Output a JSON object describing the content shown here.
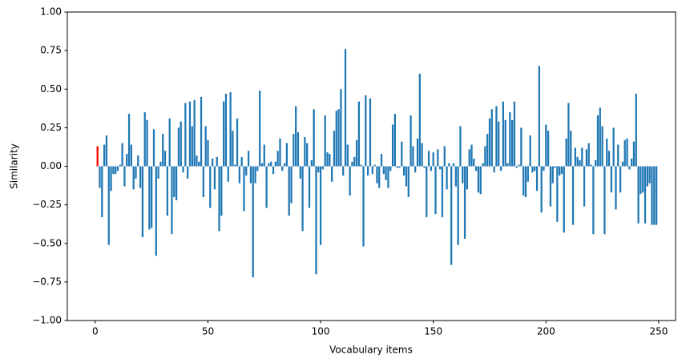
{
  "chart_data": {
    "type": "bar",
    "xlabel": "Vocabulary items",
    "ylabel": "Similarity",
    "xlim": [
      -12.4,
      257.5
    ],
    "ylim": [
      -1,
      1
    ],
    "xticks": [
      0,
      50,
      100,
      150,
      200,
      250
    ],
    "yticks": [
      {
        "value": -1,
        "label": "−1.00"
      },
      {
        "value": -0.75,
        "label": "−0.75"
      },
      {
        "value": -0.5,
        "label": "−0.50"
      },
      {
        "value": -0.25,
        "label": "−0.25"
      },
      {
        "value": 0,
        "label": "0.00"
      },
      {
        "value": 0.25,
        "label": "0.25"
      },
      {
        "value": 0.5,
        "label": "0.50"
      },
      {
        "value": 0.75,
        "label": "0.75"
      },
      {
        "value": 1,
        "label": "1.00"
      }
    ],
    "grid": false,
    "series": [
      {
        "color": "#ff0000",
        "x": [
          1
        ],
        "values": [
          0.13
        ]
      },
      {
        "color": "#1f77b4",
        "x": [
          2,
          3,
          4,
          5,
          6,
          7,
          8,
          9,
          10,
          11,
          12,
          13,
          14,
          15,
          16,
          17,
          18,
          19,
          20,
          21,
          22,
          23,
          24,
          25,
          26,
          27,
          28,
          29,
          30,
          31,
          32,
          33,
          34,
          35,
          36,
          37,
          38,
          39,
          40,
          41,
          42,
          43,
          44,
          45,
          46,
          47,
          48,
          49,
          50,
          51,
          52,
          53,
          54,
          55,
          56,
          57,
          58,
          59,
          60,
          61,
          62,
          63,
          64,
          65,
          66,
          67,
          68,
          69,
          70,
          71,
          72,
          73,
          74,
          75,
          76,
          77,
          78,
          79,
          80,
          81,
          82,
          83,
          84,
          85,
          86,
          87,
          88,
          89,
          90,
          91,
          92,
          93,
          94,
          95,
          96,
          97,
          98,
          99,
          100,
          101,
          102,
          103,
          104,
          105,
          106,
          107,
          108,
          109,
          110,
          111,
          112,
          113,
          114,
          115,
          116,
          117,
          118,
          119,
          120,
          121,
          122,
          123,
          124,
          125,
          126,
          127,
          128,
          129,
          130,
          131,
          132,
          133,
          134,
          135,
          136,
          137,
          138,
          139,
          140,
          141,
          142,
          143,
          144,
          145,
          146,
          147,
          148,
          149,
          150,
          151,
          152,
          153,
          154,
          155,
          156,
          157,
          158,
          159,
          160,
          161,
          162,
          163,
          164,
          165,
          166,
          167,
          168,
          169,
          170,
          171,
          172,
          173,
          174,
          175,
          176,
          177,
          178,
          179,
          180,
          181,
          182,
          183,
          184,
          185,
          186,
          187,
          188,
          189,
          190,
          191,
          192,
          193,
          194,
          195,
          196,
          197,
          198,
          199,
          200,
          201,
          202,
          203,
          204,
          205,
          206,
          207,
          208,
          209,
          210,
          211,
          212,
          213,
          214,
          215,
          216,
          217,
          218,
          219,
          220,
          221,
          222,
          223,
          224,
          225,
          226,
          227,
          228,
          229,
          230,
          231,
          232,
          233,
          234,
          235,
          236,
          237,
          238,
          239,
          240,
          241,
          242,
          243,
          244,
          245,
          246,
          247,
          248,
          249
        ],
        "values": [
          -0.14,
          -0.33,
          0.14,
          0.2,
          -0.51,
          -0.16,
          -0.05,
          -0.05,
          -0.03,
          0.01,
          0.15,
          -0.13,
          0.08,
          0.34,
          0.14,
          -0.15,
          -0.08,
          0.07,
          -0.14,
          -0.46,
          0.35,
          0.3,
          -0.41,
          -0.4,
          0.24,
          -0.58,
          -0.08,
          0.03,
          0.21,
          0.1,
          -0.32,
          0.31,
          -0.44,
          -0.2,
          -0.22,
          0.25,
          0.29,
          -0.04,
          0.41,
          -0.08,
          0.42,
          0.26,
          0.43,
          0.07,
          0.03,
          0.45,
          -0.2,
          0.26,
          0.17,
          -0.27,
          0.05,
          -0.15,
          0.06,
          -0.42,
          -0.32,
          0.42,
          0.47,
          -0.1,
          0.48,
          0.23,
          0.01,
          0.31,
          -0.11,
          0.06,
          -0.29,
          -0.06,
          0.1,
          -0.11,
          -0.72,
          -0.11,
          -0.03,
          0.49,
          0.02,
          0.14,
          -0.27,
          0.02,
          0.03,
          -0.05,
          0.03,
          0.1,
          0.18,
          -0.03,
          0.02,
          0.15,
          -0.32,
          -0.24,
          0.21,
          0.39,
          0.22,
          -0.08,
          -0.42,
          0.19,
          0.15,
          -0.27,
          0.04,
          0.37,
          -0.7,
          -0.04,
          -0.51,
          -0.02,
          0.33,
          0.09,
          0.08,
          -0.1,
          0.23,
          0.36,
          0.37,
          0.5,
          -0.06,
          0.76,
          0.14,
          -0.19,
          0.03,
          0.06,
          0.17,
          0.42,
          0.01,
          -0.52,
          0.46,
          -0.06,
          0.44,
          -0.05,
          0.01,
          -0.11,
          -0.14,
          0.08,
          -0.05,
          -0.09,
          -0.14,
          -0.03,
          0.27,
          0.34,
          -0.01,
          -0.01,
          0.16,
          -0.06,
          -0.13,
          -0.2,
          0.33,
          0.13,
          -0.04,
          0.18,
          0.6,
          0.15,
          -0.01,
          -0.33,
          0.1,
          -0.03,
          0.09,
          -0.31,
          0.11,
          -0.02,
          -0.33,
          0.13,
          -0.15,
          0.02,
          -0.64,
          0.02,
          -0.13,
          -0.51,
          0.26,
          -0.11,
          -0.47,
          -0.15,
          0.11,
          0.14,
          0.05,
          -0.03,
          -0.17,
          -0.18,
          0.02,
          0.13,
          0.21,
          0.31,
          0.37,
          -0.04,
          0.39,
          0.29,
          -0.03,
          0.42,
          0.3,
          0.02,
          0.35,
          0.3,
          0.42,
          -0.01,
          0.01,
          0.25,
          -0.19,
          -0.2,
          -0.1,
          0.2,
          -0.04,
          -0.03,
          -0.16,
          0.65,
          -0.3,
          -0.03,
          0.27,
          0.23,
          -0.26,
          -0.11,
          -0.01,
          -0.36,
          -0.06,
          -0.05,
          -0.43,
          0.18,
          0.41,
          0.23,
          -0.38,
          0.12,
          0.06,
          0.04,
          0.12,
          -0.26,
          0.11,
          0.15,
          0.01,
          -0.44,
          0.04,
          0.33,
          0.38,
          0.26,
          -0.44,
          0.18,
          0.1,
          -0.17,
          0.25,
          -0.28,
          0.14,
          -0.17,
          0.03,
          0.17,
          0.18,
          -0.02,
          0.05,
          0.16,
          0.47,
          -0.37,
          -0.18,
          -0.17,
          -0.37,
          -0.13,
          -0.11,
          -0.38,
          -0.38,
          -0.38
        ]
      }
    ]
  }
}
